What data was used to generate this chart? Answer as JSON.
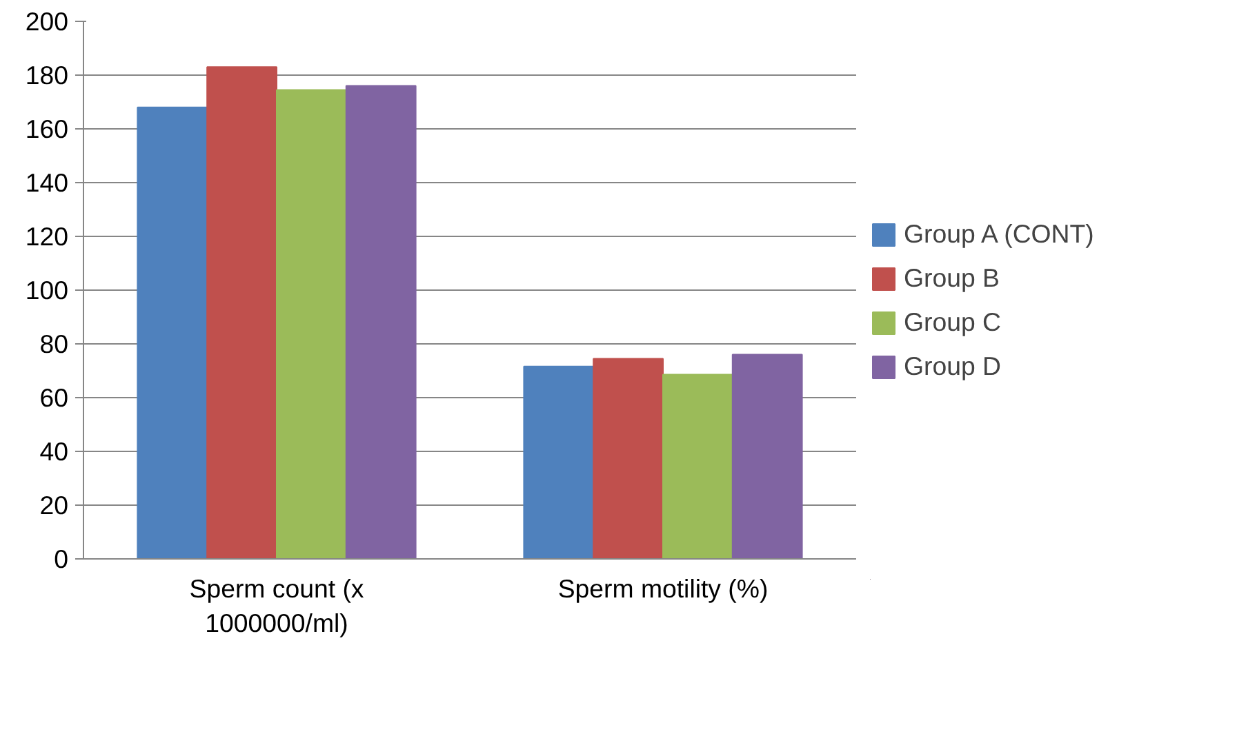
{
  "chart_data": {
    "type": "bar",
    "categories": [
      "Sperm count (x 1000000/ml)",
      "Sperm motility (%)"
    ],
    "series": [
      {
        "name": "Group A (CONT)",
        "color": "#4f81bd",
        "values": [
          168,
          71.6
        ]
      },
      {
        "name": "Group B",
        "color": "#c0504d",
        "values": [
          183,
          74.5
        ]
      },
      {
        "name": "Group C",
        "color": "#9bbb59",
        "values": [
          174.5,
          68.6
        ]
      },
      {
        "name": "Group D",
        "color": "#8064a2",
        "values": [
          176,
          76
        ]
      }
    ],
    "ylim": [
      0,
      200
    ],
    "yticks": [
      0,
      20,
      40,
      60,
      80,
      100,
      120,
      140,
      160,
      180,
      200
    ],
    "grid": "y",
    "legend": "right"
  }
}
